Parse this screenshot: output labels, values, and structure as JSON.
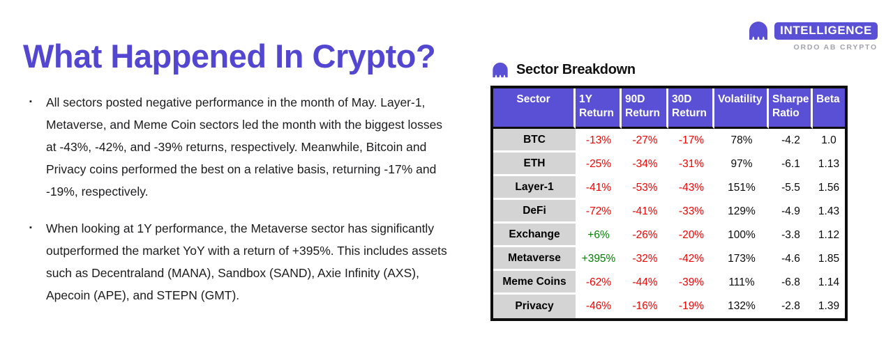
{
  "page": {
    "title": "What Happened In Crypto?"
  },
  "logo": {
    "badge": "INTELLIGENCE",
    "subtitle": "ORDO AB CRYPTO",
    "icon": "kraken-icon"
  },
  "bullets": [
    "All sectors posted negative performance in the month of May. Layer-1, Metaverse, and Meme Coin sectors led the month with the biggest losses at -43%, -42%, and -39% returns, respectively. Meanwhile, Bitcoin and Privacy coins performed the best on a relative basis, returning -17% and -19%, respectively.",
    "When looking at 1Y performance, the Metaverse sector has significantly outperformed the market YoY with a return of +395%. This includes assets such as Decentraland (MANA), Sandbox (SAND), Axie Infinity (AXS), Apecoin (APE), and STEPN (GMT)."
  ],
  "table": {
    "title": "Sector Breakdown",
    "icon": "kraken-icon",
    "columns": [
      "Sector",
      "1Y Return",
      "90D Return",
      "30D Return",
      "Volatility",
      "Sharpe Ratio",
      "Beta"
    ],
    "rows": [
      {
        "sector": "BTC",
        "values": [
          "-13%",
          "-27%",
          "-17%",
          "78%",
          "-4.2",
          "1.0"
        ]
      },
      {
        "sector": "ETH",
        "values": [
          "-25%",
          "-34%",
          "-31%",
          "97%",
          "-6.1",
          "1.13"
        ]
      },
      {
        "sector": "Layer-1",
        "values": [
          "-41%",
          "-53%",
          "-43%",
          "151%",
          "-5.5",
          "1.56"
        ]
      },
      {
        "sector": "DeFi",
        "values": [
          "-72%",
          "-41%",
          "-33%",
          "129%",
          "-4.9",
          "1.43"
        ]
      },
      {
        "sector": "Exchange",
        "values": [
          "+6%",
          "-26%",
          "-20%",
          "100%",
          "-3.8",
          "1.12"
        ]
      },
      {
        "sector": "Metaverse",
        "values": [
          "+395%",
          "-32%",
          "-42%",
          "173%",
          "-4.6",
          "1.85"
        ]
      },
      {
        "sector": "Meme Coins",
        "values": [
          "-62%",
          "-44%",
          "-39%",
          "111%",
          "-6.8",
          "1.14"
        ]
      },
      {
        "sector": "Privacy",
        "values": [
          "-46%",
          "-16%",
          "-19%",
          "132%",
          "-2.8",
          "1.39"
        ]
      }
    ]
  },
  "colors": {
    "accent": "#5347D1",
    "table_header_bg": "#5A50D5",
    "negative": "#F70000",
    "positive": "#008000",
    "sector_cell_bg": "#D4D4D4"
  }
}
